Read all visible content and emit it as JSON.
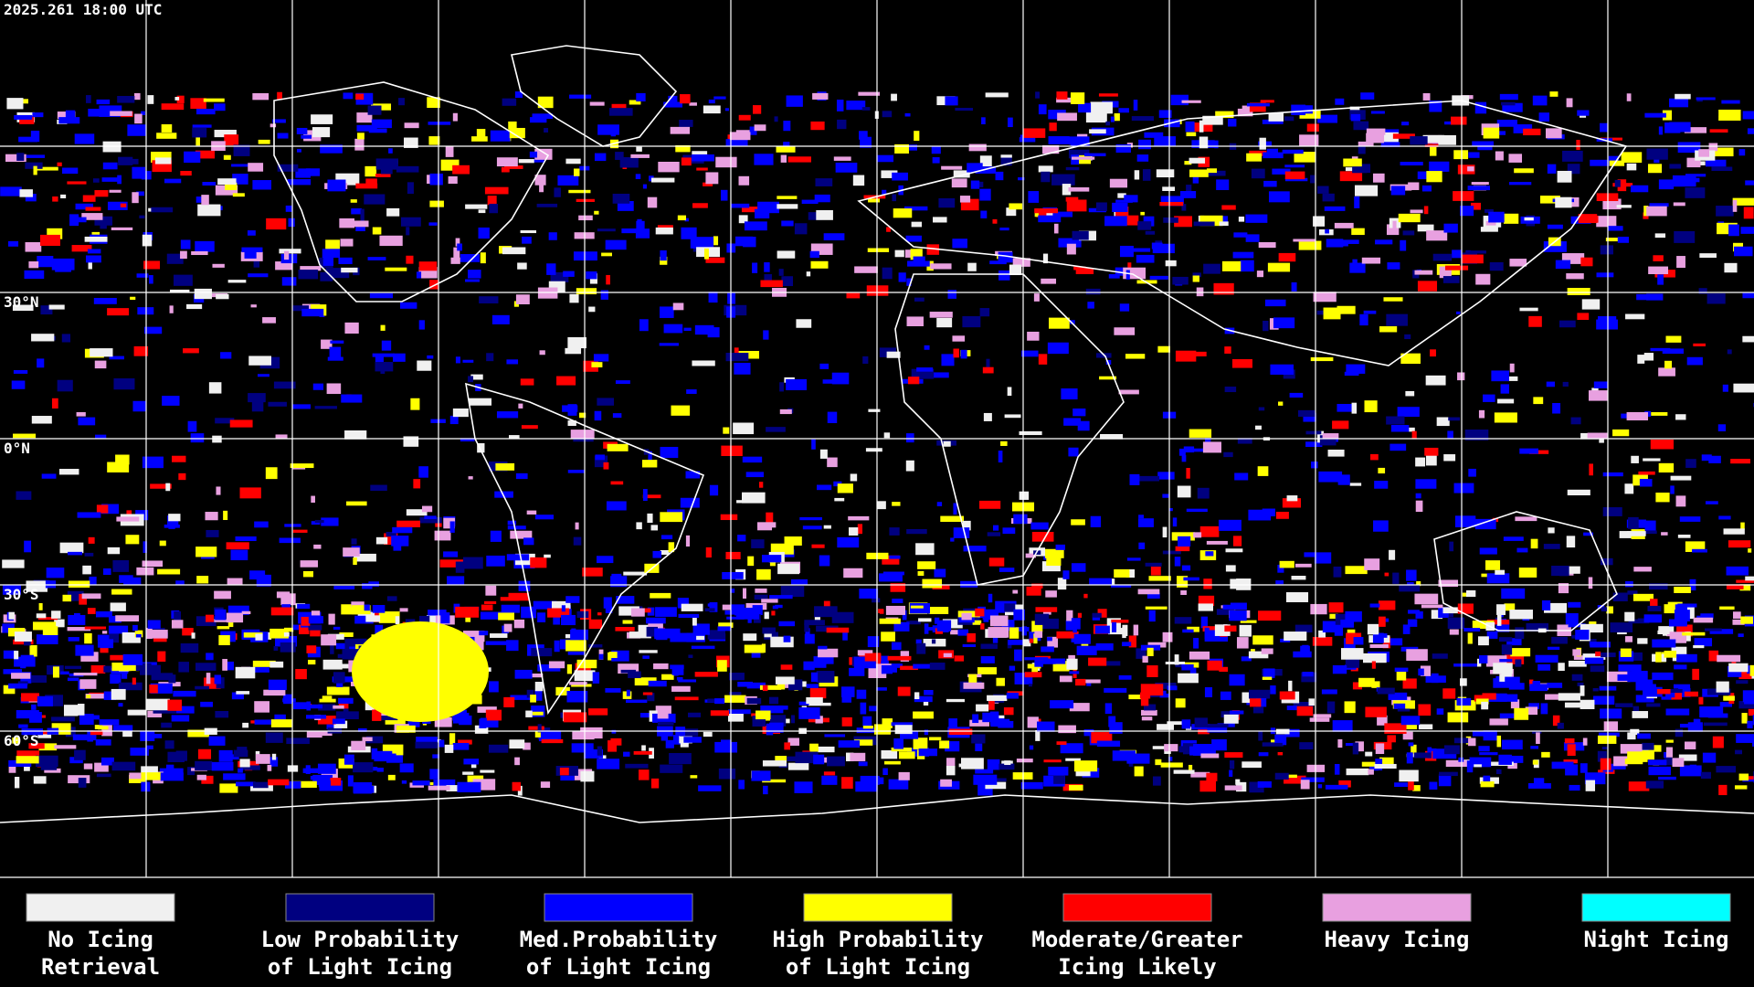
{
  "header": {
    "timestamp": "2025.261 18:00 UTC"
  },
  "map": {
    "lat_labels": [
      "30°N",
      "0°N",
      "30°S",
      "60°S"
    ]
  },
  "legend": [
    {
      "lines": [
        "No Icing",
        "Retrieval"
      ],
      "color": "#f0f0f0"
    },
    {
      "lines": [
        "Low Probability",
        "of Light Icing"
      ],
      "color": "#000080"
    },
    {
      "lines": [
        "Med.Probability",
        "of Light Icing"
      ],
      "color": "#0000ff"
    },
    {
      "lines": [
        "High Probability",
        "of Light Icing"
      ],
      "color": "#ffff00"
    },
    {
      "lines": [
        "Moderate/Greater",
        "Icing Likely"
      ],
      "color": "#ff0000"
    },
    {
      "lines": [
        "Heavy Icing"
      ],
      "color": "#e8a0e0"
    },
    {
      "lines": [
        "Night Icing"
      ],
      "color": "#00ffff"
    }
  ]
}
